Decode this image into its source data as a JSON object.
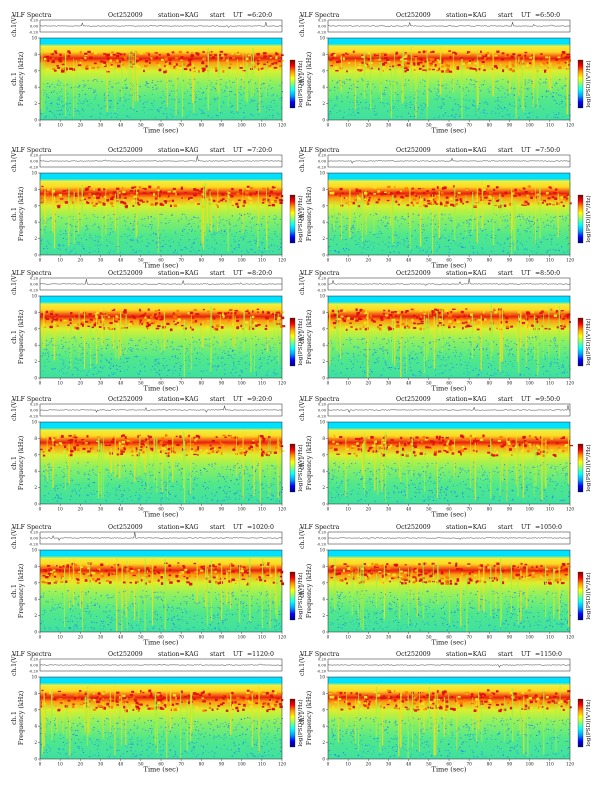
{
  "chart_data": {
    "type": "heatmap",
    "figure_title": "VLF Spectra",
    "date": "Oct252009",
    "station": "station=KAG",
    "start_prefix": "start",
    "ut_label": "UT",
    "amplitude_axis_label": "ch.1(V)",
    "amplitude_ticks": [
      "0.20",
      "0.00",
      "-0.20"
    ],
    "frequency_axis_label": "ch.1\nFrequency (kHz)",
    "frequency_ylim": [
      0,
      10
    ],
    "frequency_ticks": [
      0,
      2,
      4,
      6,
      8,
      10
    ],
    "xlabel": "Time (sec)",
    "xlim": [
      0,
      120
    ],
    "x_ticks": [
      0,
      10,
      20,
      30,
      40,
      50,
      60,
      70,
      80,
      90,
      100,
      110,
      120
    ],
    "colorbar_label": "log(PSD)(V²/Hz)",
    "colorbar_colors": [
      "#00007f",
      "#0000ff",
      "#00a0ff",
      "#00ffff",
      "#7fff7f",
      "#ffff00",
      "#ff9f00",
      "#ff0000",
      "#7f0000"
    ],
    "panels": [
      {
        "start_ut": "6:20:0"
      },
      {
        "start_ut": "6:50:0"
      },
      {
        "start_ut": "7:20:0"
      },
      {
        "start_ut": "7:50:0"
      },
      {
        "start_ut": "8:20:0"
      },
      {
        "start_ut": "8:50:0"
      },
      {
        "start_ut": "9:20:0"
      },
      {
        "start_ut": "9:50:0"
      },
      {
        "start_ut": "1020:0"
      },
      {
        "start_ut": "1050:0"
      },
      {
        "start_ut": "1120:0"
      },
      {
        "start_ut": "1150:0"
      }
    ]
  }
}
